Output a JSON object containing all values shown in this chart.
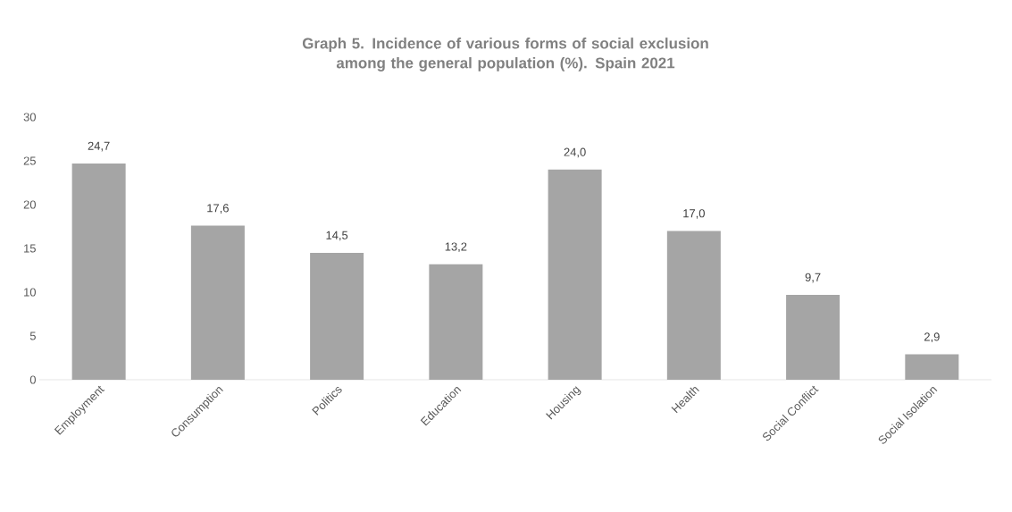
{
  "chart_data": {
    "type": "bar",
    "title": "Graph 5. Incidence of various forms of social exclusion among the general population (%). Spain 2021",
    "categories": [
      "Employment",
      "Consumption",
      "Politics",
      "Education",
      "Housing",
      "Health",
      "Social Conflict",
      "Social Isolation"
    ],
    "values": [
      24.7,
      17.6,
      14.5,
      13.2,
      24.0,
      17.0,
      9.7,
      2.9
    ],
    "value_labels": [
      "24,7",
      "17,6",
      "14,5",
      "13,2",
      "24,0",
      "17,0",
      "9,7",
      "2,9"
    ],
    "color": "#a5a5a5",
    "ylim": [
      0,
      30
    ],
    "yticks": [
      0,
      5,
      10,
      15,
      20,
      25,
      30
    ]
  }
}
